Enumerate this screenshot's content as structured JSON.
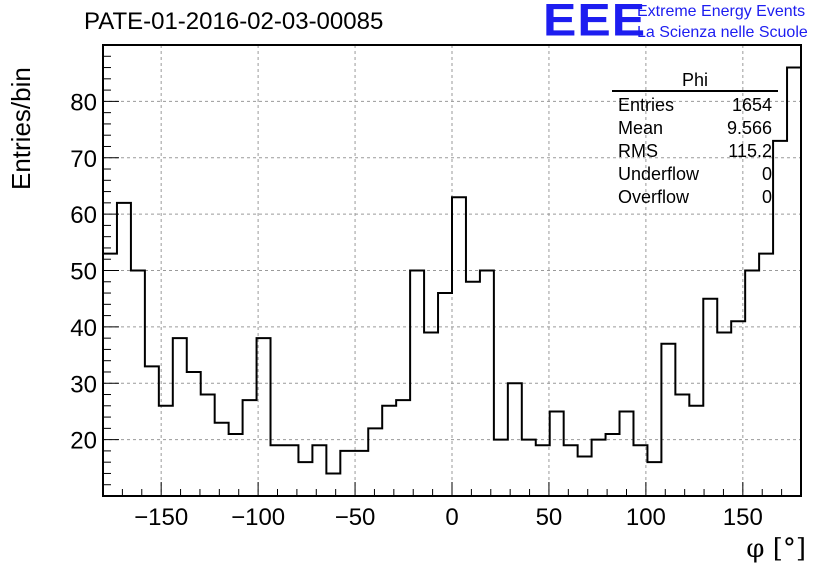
{
  "chart_data": {
    "type": "histogram",
    "title": "PATE-01-2016-02-03-00085",
    "xlabel": "φ [°]",
    "ylabel": "Entries/bin",
    "xlim": [
      -180,
      180
    ],
    "ylim": [
      10,
      90
    ],
    "grid": true,
    "bin_width": 7.2,
    "bin_edges_start": -180,
    "x_ticks": [
      "−150",
      "−100",
      "−50",
      "0",
      "50",
      "100",
      "150"
    ],
    "x_tick_values": [
      -150,
      -100,
      -50,
      0,
      50,
      100,
      150
    ],
    "y_ticks": [
      "20",
      "30",
      "40",
      "50",
      "60",
      "70",
      "80"
    ],
    "y_tick_values": [
      20,
      30,
      40,
      50,
      60,
      70,
      80
    ],
    "values": [
      53,
      62,
      50,
      33,
      26,
      38,
      32,
      28,
      23,
      21,
      27,
      38,
      19,
      19,
      16,
      19,
      14,
      18,
      18,
      22,
      26,
      27,
      50,
      39,
      46,
      63,
      48,
      50,
      20,
      30,
      20,
      19,
      25,
      19,
      17,
      20,
      21,
      25,
      19,
      16,
      37,
      28,
      26,
      45,
      39,
      41,
      50,
      53,
      73,
      86
    ],
    "stats": {
      "name": "Phi",
      "rows": [
        {
          "label": "Entries",
          "value": "1654"
        },
        {
          "label": "Mean",
          "value": "9.566"
        },
        {
          "label": "RMS",
          "value": "115.2"
        },
        {
          "label": "Underflow",
          "value": "0"
        },
        {
          "label": "Overflow",
          "value": "0"
        }
      ]
    }
  },
  "logo": {
    "text": "EEE",
    "line1": "Extreme Energy Events",
    "line2": "La Scienza nelle Scuole",
    "color": "#1d1df0"
  }
}
